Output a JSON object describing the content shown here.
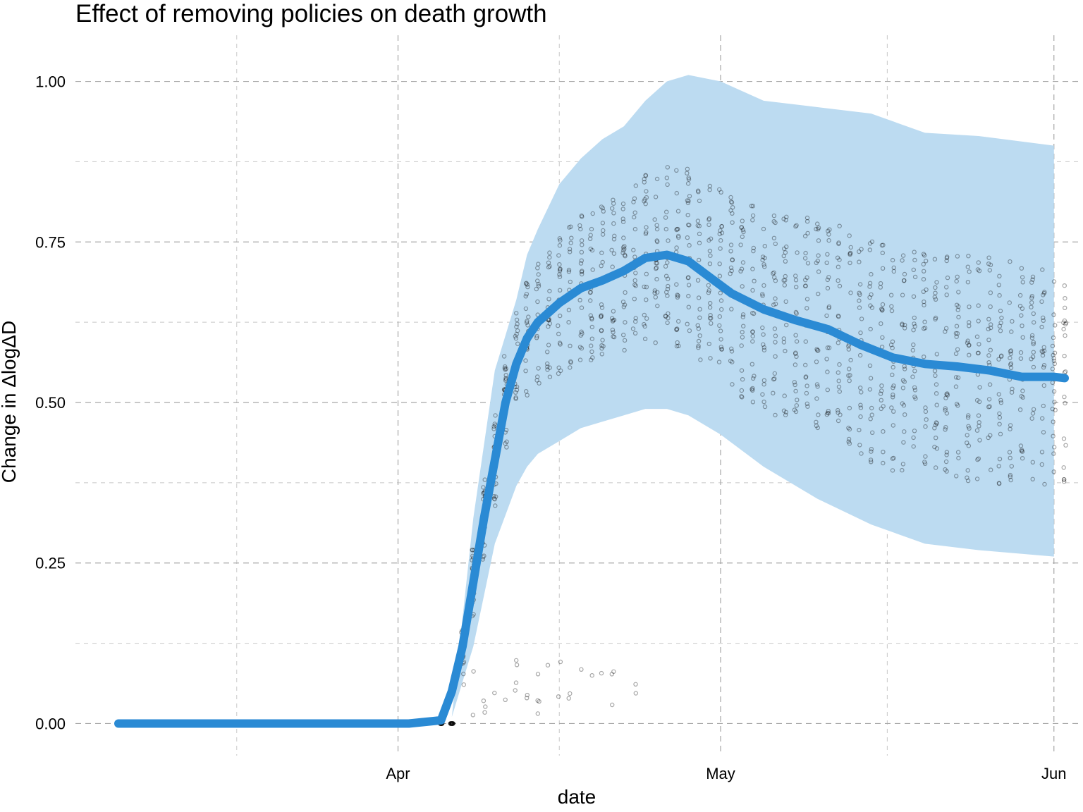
{
  "chart_data": {
    "type": "line",
    "title": "Effect of removing policies on death growth",
    "xlabel": "date",
    "ylabel": "Change in ΔlogΔD",
    "x_range": [
      "2020-03-02",
      "2020-06-02"
    ],
    "ylim": [
      -0.05,
      1.05
    ],
    "x_ticks": [
      {
        "date": "2020-04-01",
        "label": "Apr"
      },
      {
        "date": "2020-05-01",
        "label": "May"
      },
      {
        "date": "2020-06-01",
        "label": "Jun"
      }
    ],
    "y_ticks": [
      {
        "value": 0.0,
        "label": "0.00"
      },
      {
        "value": 0.25,
        "label": "0.25"
      },
      {
        "value": 0.5,
        "label": "0.50"
      },
      {
        "value": 0.75,
        "label": "0.75"
      },
      {
        "value": 1.0,
        "label": "1.00"
      }
    ],
    "grid": true,
    "colors": {
      "line": "#2a8ad4",
      "band": "#bcdbf1",
      "points": "#000000",
      "grid": "#c8c8c8"
    },
    "series": [
      {
        "kind": "line",
        "x": [
          "2020-03-06",
          "2020-03-16",
          "2020-03-26",
          "2020-04-02",
          "2020-04-05",
          "2020-04-06",
          "2020-04-07",
          "2020-04-08",
          "2020-04-09",
          "2020-04-10",
          "2020-04-11",
          "2020-04-12",
          "2020-04-13",
          "2020-04-14",
          "2020-04-15",
          "2020-04-16",
          "2020-04-18",
          "2020-04-20",
          "2020-04-22",
          "2020-04-24",
          "2020-04-26",
          "2020-04-28",
          "2020-04-30",
          "2020-05-02",
          "2020-05-05",
          "2020-05-08",
          "2020-05-11",
          "2020-05-14",
          "2020-05-17",
          "2020-05-20",
          "2020-05-23",
          "2020-05-26",
          "2020-05-29",
          "2020-06-01",
          "2020-06-02"
        ],
        "y": [
          0.0,
          0.0,
          0.0,
          0.0,
          0.005,
          0.05,
          0.12,
          0.22,
          0.32,
          0.41,
          0.5,
          0.56,
          0.6,
          0.625,
          0.64,
          0.655,
          0.678,
          0.69,
          0.705,
          0.725,
          0.73,
          0.72,
          0.695,
          0.67,
          0.645,
          0.628,
          0.614,
          0.59,
          0.57,
          0.56,
          0.556,
          0.55,
          0.54,
          0.54,
          0.538
        ]
      },
      {
        "kind": "band",
        "x": [
          "2020-04-06",
          "2020-04-08",
          "2020-04-10",
          "2020-04-12",
          "2020-04-13",
          "2020-04-14",
          "2020-04-16",
          "2020-04-18",
          "2020-04-20",
          "2020-04-22",
          "2020-04-24",
          "2020-04-26",
          "2020-04-28",
          "2020-05-01",
          "2020-05-05",
          "2020-05-10",
          "2020-05-15",
          "2020-05-20",
          "2020-05-25",
          "2020-06-01"
        ],
        "lower": [
          0.01,
          0.12,
          0.28,
          0.37,
          0.4,
          0.42,
          0.44,
          0.46,
          0.47,
          0.48,
          0.49,
          0.49,
          0.48,
          0.45,
          0.4,
          0.35,
          0.31,
          0.28,
          0.27,
          0.26
        ],
        "upper": [
          0.01,
          0.32,
          0.55,
          0.66,
          0.73,
          0.77,
          0.84,
          0.88,
          0.91,
          0.93,
          0.97,
          1.0,
          1.01,
          1.0,
          0.97,
          0.96,
          0.95,
          0.92,
          0.915,
          0.9
        ]
      }
    ]
  }
}
